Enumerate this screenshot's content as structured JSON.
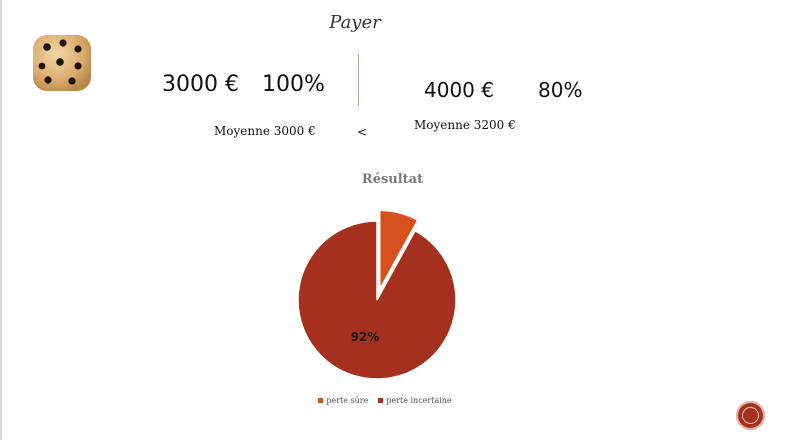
{
  "slide": {
    "title": "Payer",
    "left": {
      "amount": "3000 €",
      "percent": "100%",
      "average": "Moyenne 3000 €"
    },
    "comparator": "<",
    "right": {
      "amount": "4000 €",
      "percent": "80%",
      "average": "Moyenne 3200 €"
    }
  },
  "colors": {
    "accent_dark": "#a5301e",
    "accent_orange": "#d9501f"
  },
  "icons": {
    "dice": "dice-five-icon",
    "nav": "nav-button-icon"
  },
  "chart_data": {
    "type": "pie",
    "title": "Résultat",
    "series": [
      {
        "name": "perte sûre",
        "value": 8,
        "color": "#d9501f",
        "exploded": true
      },
      {
        "name": "perte incertaine",
        "value": 92,
        "color": "#a5301e",
        "label": "92%"
      }
    ],
    "legend": "bottom"
  }
}
